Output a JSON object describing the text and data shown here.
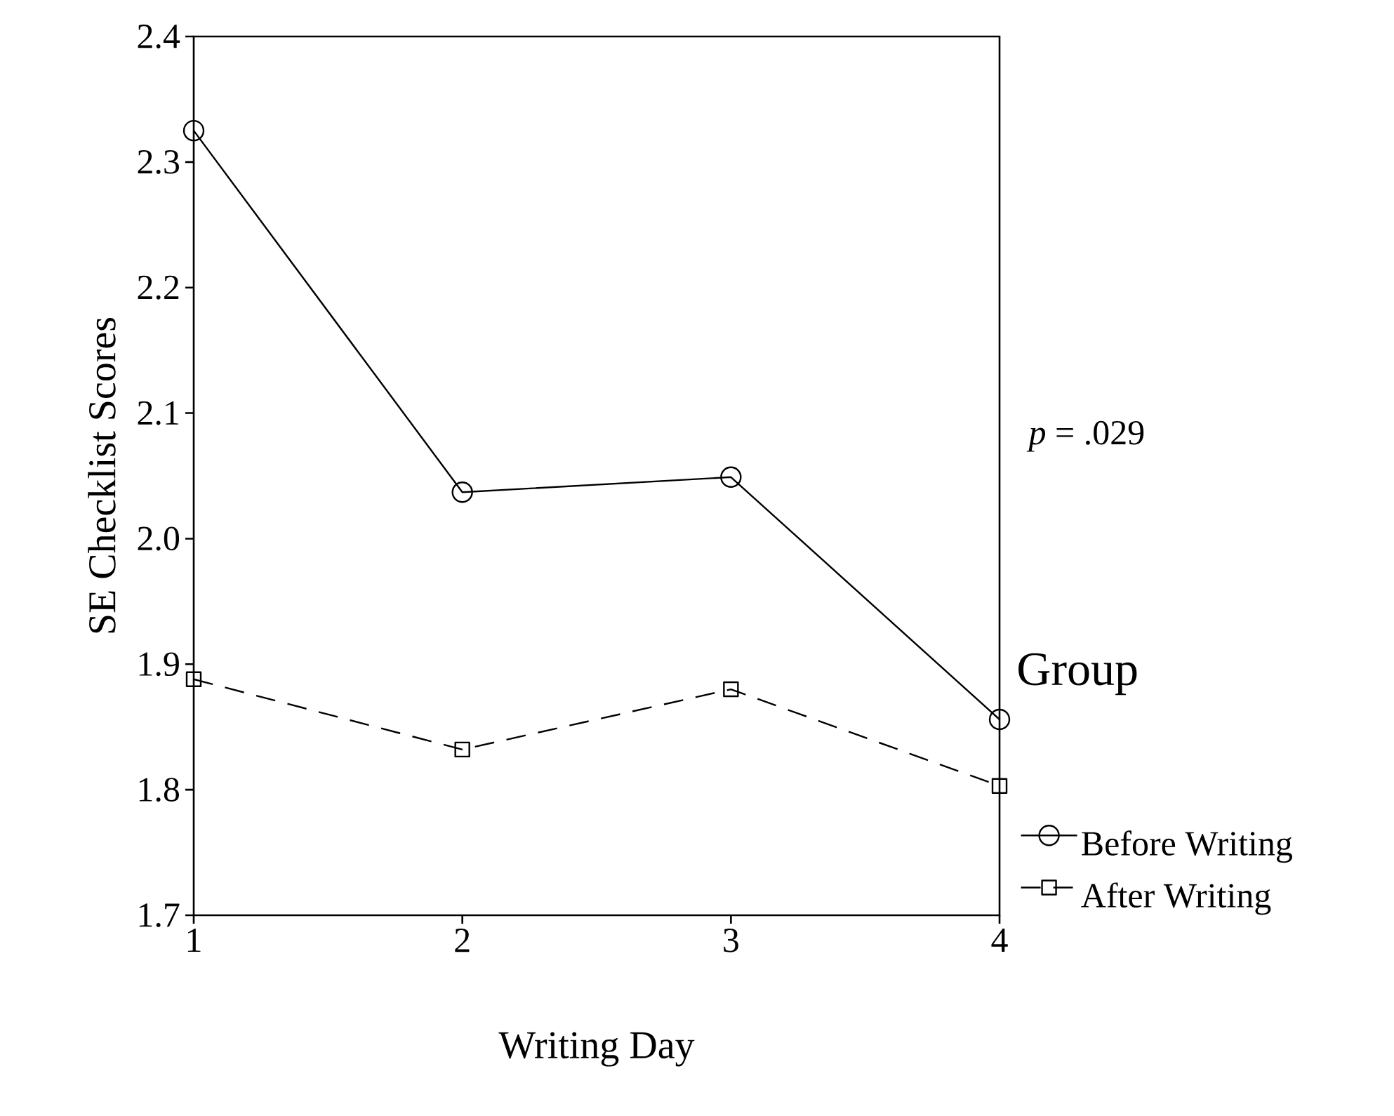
{
  "chart_data": {
    "type": "line",
    "xlabel": "Writing Day",
    "ylabel": "SE Checklist Scores",
    "legend_title": "Group",
    "annotations": [
      "*p* = .029"
    ],
    "x": [
      1,
      2,
      3,
      4
    ],
    "series": [
      {
        "name": "Before Writing",
        "color": "#000000",
        "values": [
          2.325,
          2.037,
          2.049,
          1.856
        ],
        "marker": "circle",
        "line_style": "solid"
      },
      {
        "name": "After Writing",
        "color": "#000000",
        "values": [
          1.888,
          1.832,
          1.88,
          1.803
        ],
        "marker": "square",
        "line_style": "dashed"
      }
    ],
    "xlim": [
      1,
      4
    ],
    "xticks": [
      1,
      2,
      3,
      4
    ],
    "ylim": [
      1.7,
      2.4
    ],
    "yticks": [
      1.7,
      1.8,
      1.9,
      {
        "value": 2,
        "label": "2.0"
      },
      2.1,
      2.2,
      2.3,
      2.4
    ],
    "legend": "right"
  }
}
